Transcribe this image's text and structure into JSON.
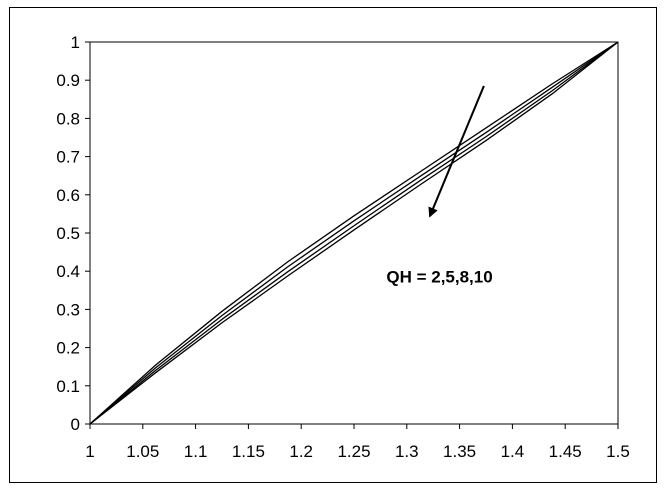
{
  "chart_data": {
    "type": "line",
    "title": "",
    "xlabel": "",
    "ylabel": "",
    "xlim": [
      1,
      1.5
    ],
    "ylim": [
      0,
      1
    ],
    "x_ticks": [
      1,
      1.05,
      1.1,
      1.15,
      1.2,
      1.25,
      1.3,
      1.35,
      1.4,
      1.45,
      1.5
    ],
    "x_tick_labels": [
      "1",
      "1.05",
      "1.1",
      "1.15",
      "1.2",
      "1.25",
      "1.3",
      "1.35",
      "1.4",
      "1.45",
      "1.5"
    ],
    "y_ticks": [
      0,
      0.1,
      0.2,
      0.3,
      0.4,
      0.5,
      0.6,
      0.7,
      0.8,
      0.9,
      1
    ],
    "y_tick_labels": [
      "0",
      "0.1",
      "0.2",
      "0.3",
      "0.4",
      "0.5",
      "0.6",
      "0.7",
      "0.8",
      "0.9",
      "1"
    ],
    "grid": false,
    "legend": "none",
    "line_color": "#000000",
    "series": [
      {
        "x": [
          1,
          1.0625,
          1.125,
          1.1875,
          1.25,
          1.3125,
          1.375,
          1.4375,
          1.5
        ],
        "y": [
          0,
          0.155,
          0.295,
          0.425,
          0.545,
          0.66,
          0.775,
          0.89,
          1
        ]
      },
      {
        "x": [
          1,
          1.0625,
          1.125,
          1.1875,
          1.25,
          1.3125,
          1.375,
          1.4375,
          1.5
        ],
        "y": [
          0,
          0.148,
          0.284,
          0.412,
          0.532,
          0.648,
          0.763,
          0.881,
          1
        ]
      },
      {
        "x": [
          1,
          1.0625,
          1.125,
          1.1875,
          1.25,
          1.3125,
          1.375,
          1.4375,
          1.5
        ],
        "y": [
          0,
          0.141,
          0.274,
          0.399,
          0.519,
          0.637,
          0.752,
          0.872,
          1
        ]
      },
      {
        "x": [
          1,
          1.0625,
          1.125,
          1.1875,
          1.25,
          1.3125,
          1.375,
          1.4375,
          1.5
        ],
        "y": [
          0,
          0.135,
          0.265,
          0.388,
          0.508,
          0.626,
          0.742,
          0.864,
          1
        ]
      }
    ],
    "annotations": [
      {
        "text": "QH = 2,5,8,10",
        "x": 1.331,
        "y": 0.37,
        "arrow_from": [
          1.373,
          0.885
        ],
        "arrow_to": [
          1.322,
          0.545
        ]
      }
    ]
  }
}
